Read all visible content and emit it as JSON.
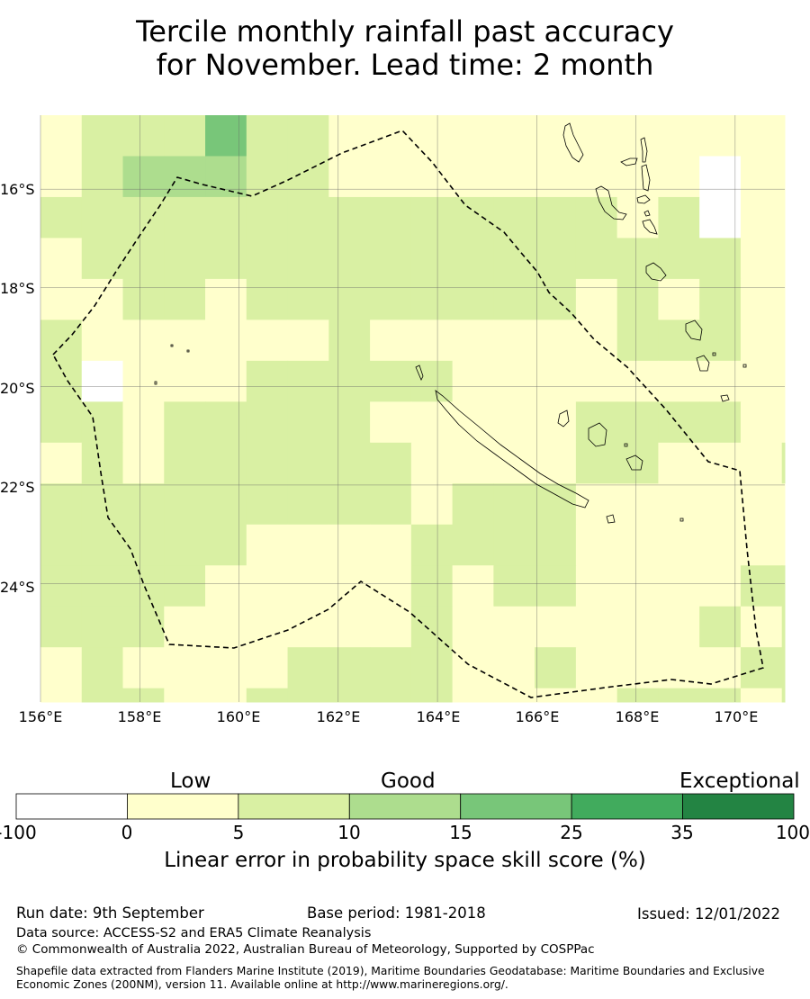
{
  "title": {
    "line1": "Tercile monthly rainfall past accuracy",
    "line2": "for November. Lead time: 2 month"
  },
  "map": {
    "lon_range": [
      156,
      171
    ],
    "lat_range": [
      -26.4,
      -14.5
    ],
    "lat_ticks": [
      "16°S",
      "18°S",
      "20°S",
      "22°S",
      "24°S"
    ],
    "lon_ticks": [
      "156°E",
      "158°E",
      "160°E",
      "162°E",
      "164°E",
      "166°E",
      "168°E",
      "170°E"
    ],
    "gridlines": true,
    "boundary_style": "dashed"
  },
  "chart_data": {
    "type": "heatmap",
    "cell_size_deg": 0.83,
    "rows_north_to_south": [
      "0111311000000000000101111111",
      "0122211000000000x00011111111",
      "1111111111111101x00011111111",
      "0111111111111111100x01111110",
      "0011011111111010100011111110",
      "1000000100000011100011111101",
      "1x000111110000000000000111xx",
      "1101111100000111100000111100",
      "0101111110000110001100011011",
      "1111111110111000000000111000",
      "1111100001111000000000111111",
      "1111000001011000011010111111",
      "1110000001000000101011111112",
      "0100001111001000011001111111",
      "0110011111000011101111111100",
      "0000000011000000000110000000",
      "0010x000011101101111101000001",
      "0000xx001111000010111101111",
      "1000xxxxx00000111001000000001",
      "0000000000111110101000110011",
      "x0000000000111110110100001000",
      "0000000x00111111100010000000"
    ],
    "colorbar": {
      "label": "Linear error in probability space skill score (%)",
      "categories": [
        "Low",
        "Good",
        "Exceptional"
      ],
      "bounds": [
        "-100",
        "0",
        "5",
        "10",
        "15",
        "25",
        "35",
        "100"
      ],
      "colors": [
        "#ffffff",
        "#ffffcc",
        "#d9f0a3",
        "#addd8e",
        "#78c679",
        "#41ab5d",
        "#238443"
      ]
    }
  },
  "footer": {
    "run_date": "Run date: 9th September",
    "base_period": "Base period: 1981-2018",
    "issued": "Issued: 12/01/2022",
    "data_source": "Data source: ACCESS-S2 and ERA5 Climate Reanalysis",
    "copyright": "© Commonwealth of Australia 2022, Australian Bureau of Meteorology, Supported by COSPPac",
    "shapefile": "Shapefile data extracted from Flanders Marine Institute (2019), Maritime Boundaries Geodatabase: Maritime Boundaries and Exclusive Economic Zones (200NM), version 11. Available online at http://www.marineregions.org/."
  }
}
